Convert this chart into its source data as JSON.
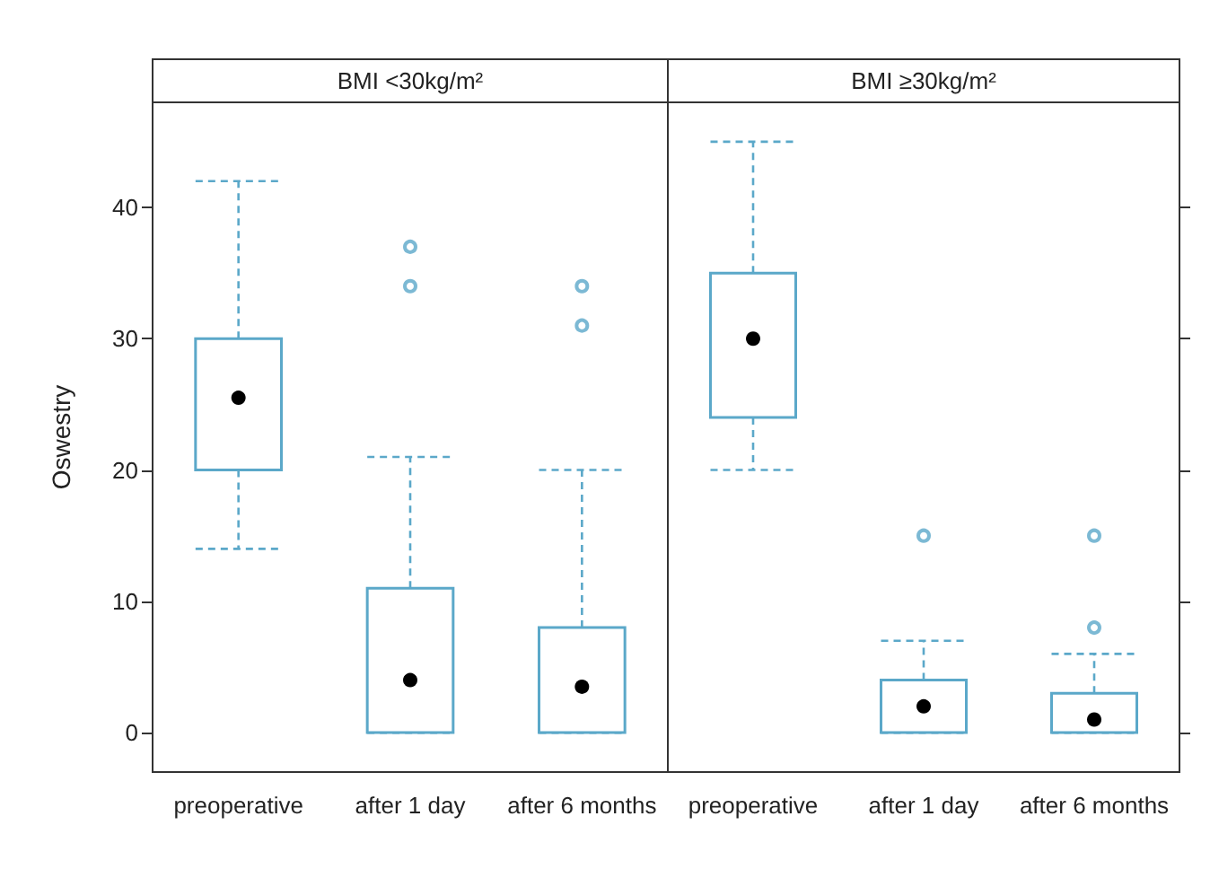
{
  "chart_data": [
    {
      "type": "box",
      "title": "BMI <30kg/m²",
      "ylabel": "Oswestry",
      "categories": [
        "preoperative",
        "after 1 day",
        "after 6 months"
      ],
      "series": [
        {
          "color": "#5ba8c9",
          "boxes": [
            {
              "low": 14,
              "q1": 20,
              "median": 25.5,
              "q3": 30,
              "high": 42
            },
            {
              "low": 0,
              "q1": 0,
              "median": 4,
              "q3": 11,
              "high": 21,
              "outliers": [
                34,
                37
              ]
            },
            {
              "low": 0,
              "q1": 0,
              "median": 3.5,
              "q3": 8,
              "high": 20,
              "outliers": [
                31,
                34
              ]
            }
          ]
        }
      ],
      "ylim": [
        -3,
        48
      ],
      "yticks": [
        0,
        10,
        20,
        30,
        40
      ]
    },
    {
      "type": "box",
      "title": "BMI ≥30kg/m²",
      "categories": [
        "preoperative",
        "after 1 day",
        "after 6 months"
      ],
      "series": [
        {
          "color": "#5ba8c9",
          "boxes": [
            {
              "low": 20,
              "q1": 24,
              "median": 30,
              "q3": 35,
              "high": 45
            },
            {
              "low": 0,
              "q1": 0,
              "median": 2,
              "q3": 4,
              "high": 7,
              "outliers": [
                15
              ]
            },
            {
              "low": 0,
              "q1": 0,
              "median": 1,
              "q3": 3,
              "high": 6,
              "outliers": [
                8,
                15
              ]
            }
          ]
        }
      ],
      "ylim": [
        -3,
        48
      ],
      "yticks": [
        {
          "value": 0,
          "label": null
        },
        {
          "value": 10,
          "label": null
        },
        {
          "value": 20,
          "label": null
        },
        {
          "value": 30,
          "label": null
        },
        {
          "value": 40,
          "label": null
        }
      ],
      "tick_labels": "x"
    }
  ]
}
